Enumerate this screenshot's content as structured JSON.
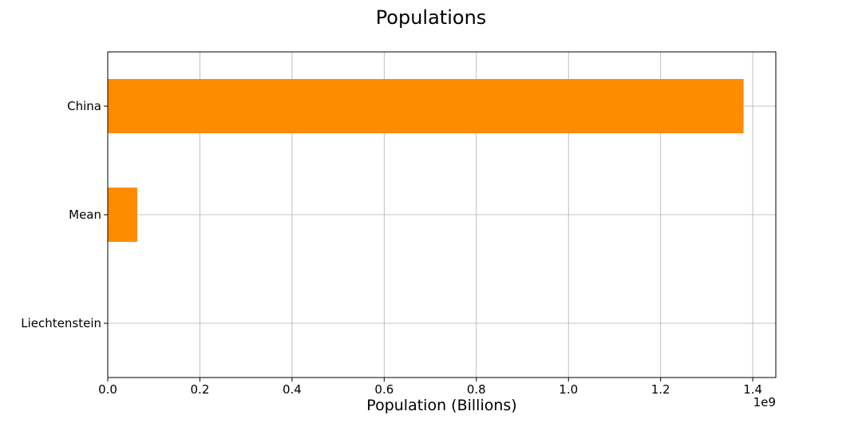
{
  "chart_data": {
    "type": "bar",
    "orientation": "horizontal",
    "title": "Populations",
    "xlabel": "Population (Billions)",
    "ylabel": "",
    "x_offset_label": "1e9",
    "categories": [
      "China",
      "Mean",
      "Liechtenstein"
    ],
    "values": [
      1380000000,
      64000000,
      38000
    ],
    "xlim": [
      0,
      1450000000
    ],
    "xticks": [
      0,
      200000000,
      400000000,
      600000000,
      800000000,
      1000000000,
      1200000000,
      1400000000
    ],
    "xtick_labels": [
      "0.0",
      "0.2",
      "0.4",
      "0.6",
      "0.8",
      "1.0",
      "1.2",
      "1.4"
    ],
    "grid": true,
    "bar_color": "#ff8c00"
  }
}
